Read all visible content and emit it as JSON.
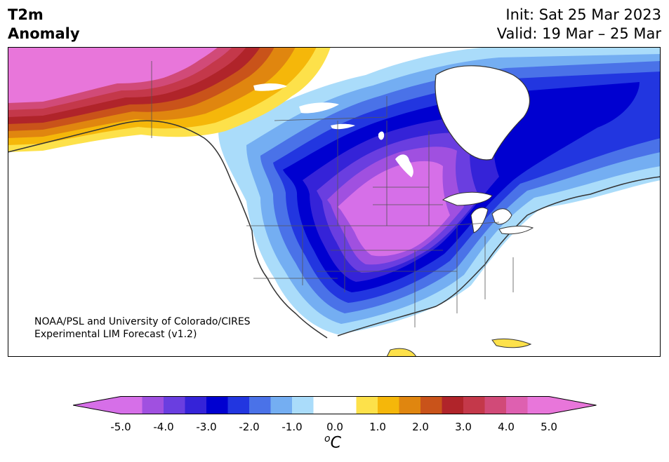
{
  "header": {
    "title_line1": "T2m",
    "title_line2": "Anomaly",
    "init": "Init: Sat 25 Mar 2023",
    "valid": "Valid: 19 Mar – 25 Mar"
  },
  "credit": {
    "line1": "NOAA/PSL and University of Colorado/CIRES",
    "line2": "Experimental LIM Forecast (v1.2)"
  },
  "colorbar": {
    "unit_sup": "o",
    "unit_base": "C",
    "ticks": [
      "-5.0",
      "-4.0",
      "-3.0",
      "-2.0",
      "-1.0",
      "0.0",
      "1.0",
      "2.0",
      "3.0",
      "4.0",
      "5.0"
    ],
    "tick_values": [
      -5,
      -4,
      -3,
      -2,
      -1,
      0,
      1,
      2,
      3,
      4,
      5
    ],
    "colors": [
      "#d66fe8",
      "#a050e0",
      "#6a3ee0",
      "#3523d8",
      "#0000d0",
      "#2236e0",
      "#4a72e8",
      "#74aef2",
      "#aadcfa",
      "#ffffff",
      "#ffffff",
      "#fde14a",
      "#f5b70a",
      "#e0860f",
      "#c9531a",
      "#b0242a",
      "#c4384a",
      "#d14a78",
      "#de60b0",
      "#e876da"
    ],
    "range": [
      -5,
      5
    ],
    "extend": "both"
  },
  "map": {
    "projection": "lambert-conformal",
    "region": "North America",
    "variable": "2m temperature anomaly"
  }
}
